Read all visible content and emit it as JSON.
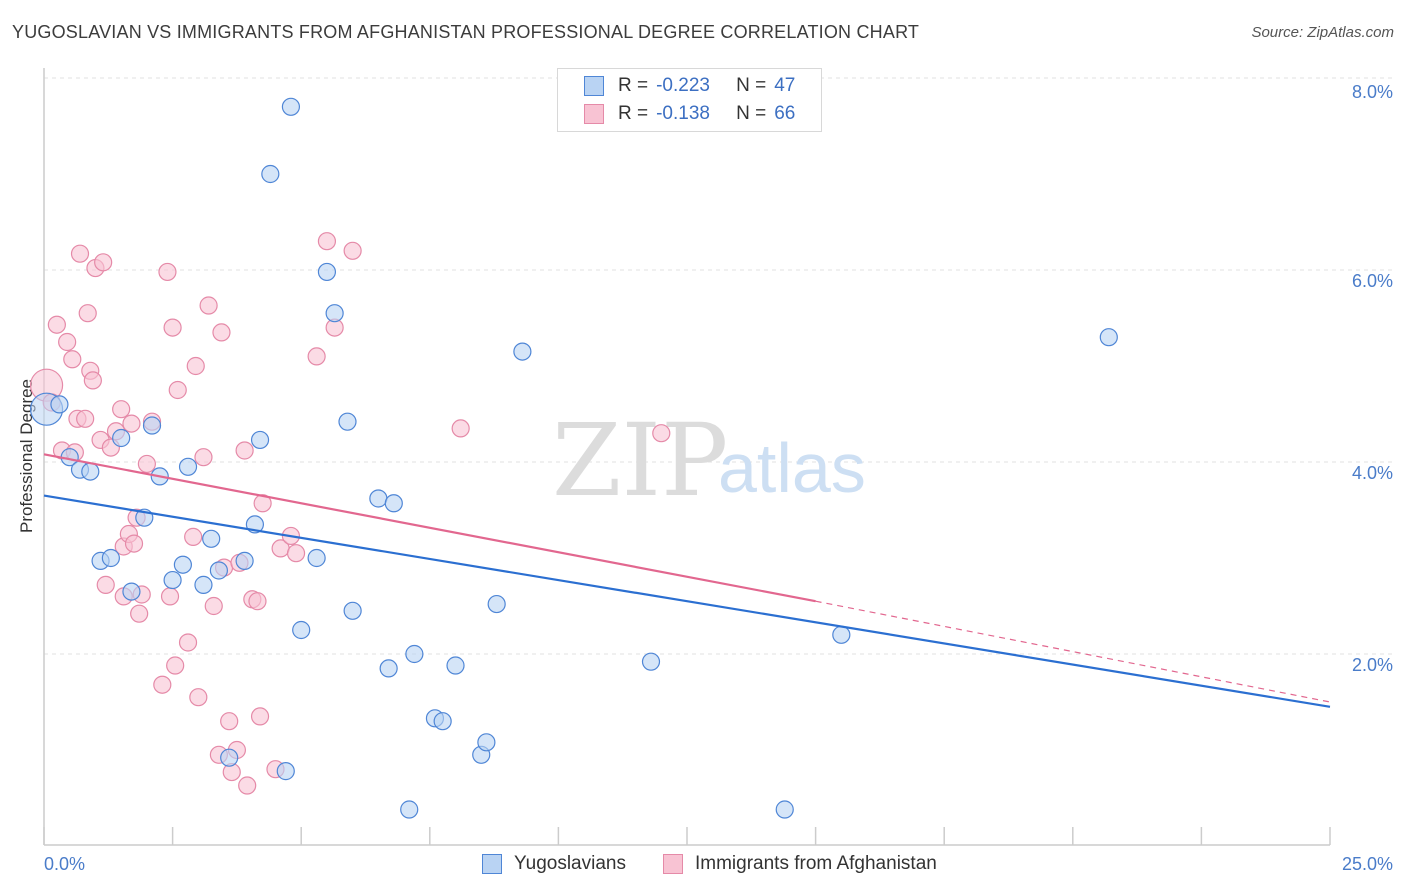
{
  "title": "YUGOSLAVIAN VS IMMIGRANTS FROM AFGHANISTAN PROFESSIONAL DEGREE CORRELATION CHART",
  "source": "Source: ZipAtlas.com",
  "watermark": {
    "zip": "ZIP",
    "atlas": "atlas"
  },
  "legend": {
    "rows": [
      {
        "r_label": "R =",
        "r_value": "-0.223",
        "n_label": "N =",
        "n_value": "47"
      },
      {
        "r_label": "R =",
        "r_value": "-0.138",
        "n_label": "N =",
        "n_value": "66"
      }
    ]
  },
  "bottom_legend": {
    "series1": "Yugoslavians",
    "series2": "Immigrants from Afghanistan"
  },
  "colors": {
    "blue_fill": "#b9d3f3",
    "blue_stroke": "#4f86d6",
    "blue_line": "#2b6fd1",
    "pink_fill": "#f8c3d3",
    "pink_stroke": "#e58aa8",
    "pink_line": "#e2678f",
    "tick_text": "#4a7cc9",
    "grid": "#e2e2e2"
  },
  "chart_data": {
    "type": "scatter",
    "title": "YUGOSLAVIAN VS IMMIGRANTS FROM AFGHANISTAN PROFESSIONAL DEGREE CORRELATION CHART",
    "xlabel": "",
    "ylabel": "Professional Degree",
    "xlim": [
      0,
      25
    ],
    "ylim": [
      0,
      8.2
    ],
    "x_tick_labels": [
      "0.0%",
      "25.0%"
    ],
    "y_ticks": [
      2,
      4,
      6,
      8
    ],
    "y_tick_labels": [
      "2.0%",
      "4.0%",
      "6.0%",
      "8.0%"
    ],
    "grid": true,
    "legend_position": "top-center",
    "series": [
      {
        "name": "Yugoslavians",
        "color": "#4f86d6",
        "points": [
          [
            0.05,
            4.55
          ],
          [
            0.3,
            4.6
          ],
          [
            0.5,
            4.05
          ],
          [
            0.7,
            3.92
          ],
          [
            0.9,
            3.9
          ],
          [
            1.1,
            2.97
          ],
          [
            1.3,
            3.0
          ],
          [
            1.5,
            4.25
          ],
          [
            1.7,
            2.65
          ],
          [
            1.95,
            3.42
          ],
          [
            2.1,
            4.38
          ],
          [
            2.25,
            3.85
          ],
          [
            2.5,
            2.77
          ],
          [
            2.7,
            2.93
          ],
          [
            2.8,
            3.95
          ],
          [
            3.1,
            2.72
          ],
          [
            3.25,
            3.2
          ],
          [
            3.4,
            2.87
          ],
          [
            3.6,
            0.92
          ],
          [
            3.9,
            2.97
          ],
          [
            4.1,
            3.35
          ],
          [
            4.2,
            4.23
          ],
          [
            4.7,
            0.78
          ],
          [
            4.4,
            7.0
          ],
          [
            4.8,
            7.7
          ],
          [
            5.0,
            2.25
          ],
          [
            5.3,
            3.0
          ],
          [
            5.5,
            5.98
          ],
          [
            5.65,
            5.55
          ],
          [
            5.9,
            4.42
          ],
          [
            6.0,
            2.45
          ],
          [
            6.5,
            3.62
          ],
          [
            6.7,
            1.85
          ],
          [
            6.8,
            3.57
          ],
          [
            7.1,
            0.38
          ],
          [
            7.2,
            2.0
          ],
          [
            7.6,
            1.33
          ],
          [
            7.75,
            1.3
          ],
          [
            8.0,
            1.88
          ],
          [
            8.5,
            0.95
          ],
          [
            8.6,
            1.08
          ],
          [
            8.8,
            2.52
          ],
          [
            9.3,
            5.15
          ],
          [
            11.8,
            1.92
          ],
          [
            14.4,
            0.38
          ],
          [
            15.5,
            2.2
          ],
          [
            20.7,
            5.3
          ]
        ]
      },
      {
        "name": "Immigrants from Afghanistan",
        "color": "#e58aa8",
        "points": [
          [
            0.05,
            4.8
          ],
          [
            0.15,
            4.62
          ],
          [
            0.25,
            5.43
          ],
          [
            0.35,
            4.12
          ],
          [
            0.45,
            5.25
          ],
          [
            0.55,
            5.07
          ],
          [
            0.6,
            4.1
          ],
          [
            0.65,
            4.45
          ],
          [
            0.8,
            4.45
          ],
          [
            0.7,
            6.17
          ],
          [
            0.85,
            5.55
          ],
          [
            0.9,
            4.95
          ],
          [
            0.95,
            4.85
          ],
          [
            1.0,
            6.02
          ],
          [
            1.1,
            4.23
          ],
          [
            1.15,
            6.08
          ],
          [
            1.2,
            2.72
          ],
          [
            1.3,
            4.15
          ],
          [
            1.4,
            4.32
          ],
          [
            1.5,
            4.55
          ],
          [
            1.55,
            3.12
          ],
          [
            1.65,
            3.25
          ],
          [
            1.7,
            4.4
          ],
          [
            1.75,
            3.15
          ],
          [
            1.8,
            3.42
          ],
          [
            1.85,
            2.42
          ],
          [
            1.9,
            2.62
          ],
          [
            2.0,
            3.98
          ],
          [
            2.1,
            4.42
          ],
          [
            2.3,
            1.68
          ],
          [
            2.4,
            5.98
          ],
          [
            2.5,
            5.4
          ],
          [
            2.55,
            1.88
          ],
          [
            2.6,
            4.75
          ],
          [
            2.8,
            2.12
          ],
          [
            2.9,
            3.22
          ],
          [
            2.95,
            5.0
          ],
          [
            3.0,
            1.55
          ],
          [
            3.1,
            4.05
          ],
          [
            3.2,
            5.63
          ],
          [
            3.3,
            2.5
          ],
          [
            3.4,
            0.95
          ],
          [
            3.45,
            5.35
          ],
          [
            3.5,
            2.9
          ],
          [
            3.6,
            1.3
          ],
          [
            3.65,
            0.77
          ],
          [
            3.75,
            1.0
          ],
          [
            3.8,
            2.95
          ],
          [
            3.9,
            4.12
          ],
          [
            3.95,
            0.63
          ],
          [
            4.05,
            2.57
          ],
          [
            4.15,
            2.55
          ],
          [
            4.2,
            1.35
          ],
          [
            4.25,
            3.57
          ],
          [
            4.5,
            0.8
          ],
          [
            4.6,
            3.1
          ],
          [
            4.8,
            3.23
          ],
          [
            4.9,
            3.05
          ],
          [
            5.3,
            5.1
          ],
          [
            5.5,
            6.3
          ],
          [
            5.65,
            5.4
          ],
          [
            6.0,
            6.2
          ],
          [
            8.1,
            4.35
          ],
          [
            12.0,
            4.3
          ],
          [
            2.45,
            2.6
          ],
          [
            1.55,
            2.6
          ]
        ]
      }
    ],
    "trend_lines": [
      {
        "series": "Yugoslavians",
        "x": [
          0,
          25
        ],
        "y": [
          3.65,
          1.45
        ],
        "style": "solid"
      },
      {
        "series": "Immigrants from Afghanistan",
        "x": [
          0,
          15
        ],
        "y": [
          4.08,
          2.55
        ],
        "style": "solid"
      },
      {
        "series": "Immigrants from Afghanistan",
        "x": [
          15,
          25
        ],
        "y": [
          2.55,
          1.5
        ],
        "style": "dashed"
      }
    ]
  }
}
